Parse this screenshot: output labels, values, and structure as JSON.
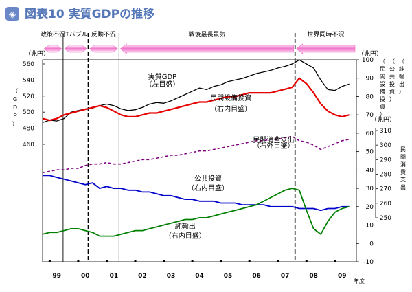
{
  "figure": {
    "title": "図表10 実質GDPの推移",
    "badge_glyph": "◈"
  },
  "phases": [
    {
      "label": "政策不況",
      "start": 1999.0,
      "end": 1999.72,
      "arrow": "both"
    },
    {
      "label": "ITバブル",
      "start": 1999.72,
      "end": 2000.6,
      "arrow": "both"
    },
    {
      "label": "反動不況",
      "start": 2000.6,
      "end": 2001.68,
      "arrow": "both"
    },
    {
      "label": "戦後最長景気",
      "start": 2001.68,
      "end": 2007.85,
      "arrow": "left"
    },
    {
      "label": "世界同時不況",
      "start": 2007.85,
      "end": 2010.0,
      "arrow": "left"
    }
  ],
  "phase_dividers": [
    1999.72,
    2000.6,
    2001.68,
    2007.85
  ],
  "dashed_dividers": [
    2000.6,
    2007.85
  ],
  "x_axis": {
    "start": 1999.0,
    "end": 2010.0,
    "tick_labels": [
      "99",
      "00",
      "01",
      "02",
      "03",
      "04",
      "05",
      "06",
      "07",
      "08",
      "09"
    ],
    "tick_positions": [
      1999.5,
      2000.5,
      2001.5,
      2002.5,
      2003.5,
      2004.5,
      2005.5,
      2006.5,
      2007.5,
      2008.5,
      2009.5
    ],
    "suffix": "年度"
  },
  "axes": {
    "left": {
      "unit": "（兆円）",
      "label_chars": [
        "（",
        "Ｇ",
        "Ｄ",
        "Ｐ",
        "）"
      ],
      "ticks": [
        460,
        480,
        500,
        520,
        540,
        560
      ],
      "range": [
        360,
        560
      ]
    },
    "right_inner": {
      "unit": "（兆円）",
      "title_cols": [
        [
          "（",
          "民",
          "間",
          "設",
          "備",
          "投",
          "資",
          "）"
        ],
        [
          "（",
          "公",
          "共",
          "投",
          "資",
          "）"
        ],
        [
          "（",
          "純",
          "輸",
          "出",
          "）"
        ]
      ],
      "ticks": [
        -10,
        0,
        10,
        20,
        30,
        40,
        50,
        60,
        70,
        80,
        90,
        100
      ],
      "range": [
        -10,
        100
      ]
    },
    "right_outer": {
      "unit": "（兆円）",
      "title_chars": [
        "民",
        "間",
        "消",
        "費",
        "支",
        "出"
      ],
      "ticks": [
        250,
        260,
        270,
        280,
        290,
        300,
        310
      ],
      "range": [
        250,
        310
      ]
    }
  },
  "chart_data": {
    "type": "line",
    "x": [
      1999.0,
      1999.25,
      1999.5,
      1999.75,
      2000.0,
      2000.25,
      2000.5,
      2000.75,
      2001.0,
      2001.25,
      2001.5,
      2001.75,
      2002.0,
      2002.25,
      2002.5,
      2002.75,
      2003.0,
      2003.25,
      2003.5,
      2003.75,
      2004.0,
      2004.25,
      2004.5,
      2004.75,
      2005.0,
      2005.25,
      2005.5,
      2005.75,
      2006.0,
      2006.25,
      2006.5,
      2006.75,
      2007.0,
      2007.25,
      2007.5,
      2007.75,
      2008.0,
      2008.25,
      2008.5,
      2008.75,
      2009.0,
      2009.25,
      2009.5,
      2009.75
    ],
    "series": [
      {
        "name": "実質GDP",
        "sublabel": "（左目盛）",
        "axis": "left",
        "color": "#000000",
        "dash": "",
        "width": 1.3,
        "values": [
          487,
          490,
          489,
          492,
          500,
          502,
          504,
          505,
          508,
          510,
          508,
          504,
          502,
          503,
          506,
          510,
          512,
          511,
          514,
          518,
          522,
          526,
          530,
          528,
          532,
          534,
          538,
          540,
          542,
          545,
          548,
          550,
          552,
          555,
          557,
          560,
          565,
          560,
          555,
          540,
          528,
          527,
          532,
          535
        ],
        "label_pos": {
          "x": 2003.2,
          "y": 541
        },
        "sub_pos": {
          "x": 2003.2,
          "y": 532
        }
      },
      {
        "name": "民間設備投資",
        "sublabel": "（右内目盛）",
        "axis": "right_inner",
        "color": "#e60000",
        "dash": "",
        "width": 2.2,
        "values": [
          68,
          67,
          68,
          70,
          71,
          72,
          73,
          74,
          75,
          74,
          72,
          70,
          69,
          69,
          70,
          71,
          71,
          72,
          73,
          74,
          75,
          76,
          77,
          77,
          78,
          79,
          80,
          80,
          81,
          82,
          82,
          82,
          82,
          83,
          84,
          85,
          90,
          87,
          82,
          76,
          72,
          70,
          69,
          70
        ],
        "label_pos": {
          "x": 2005.6,
          "y": 78
        },
        "sub_pos": {
          "x": 2005.6,
          "y": 72
        }
      },
      {
        "name": "民間消費支出",
        "sublabel": "（右外目盛）",
        "axis": "right_outer",
        "color": "#800080",
        "dash": "4,3",
        "width": 1.6,
        "values": [
          281,
          282,
          283,
          283,
          284,
          284,
          286,
          287,
          287,
          288,
          287,
          287,
          288,
          289,
          290,
          290,
          291,
          292,
          293,
          293,
          294,
          295,
          296,
          296,
          297,
          298,
          299,
          300,
          301,
          302,
          303,
          303,
          304,
          304,
          305,
          306,
          303,
          302,
          300,
          297,
          299,
          301,
          303,
          304
        ],
        "label_pos": {
          "x": 2007.1,
          "y": 302
        },
        "sub_pos": {
          "x": 2007.1,
          "y": 298
        }
      },
      {
        "name": "公共投資",
        "sublabel": "（右内目盛）",
        "axis": "right_inner",
        "color": "#0000cc",
        "dash": "",
        "width": 1.8,
        "values": [
          37,
          37,
          36,
          35,
          34,
          33,
          32,
          33,
          30,
          31,
          30,
          30,
          29,
          29,
          28,
          28,
          27,
          26,
          26,
          25,
          24,
          24,
          23,
          23,
          23,
          22,
          22,
          22,
          21,
          21,
          21,
          21,
          20,
          20,
          20,
          20,
          19,
          19,
          19,
          18,
          19,
          19,
          20,
          20
        ],
        "label_pos": {
          "x": 2004.8,
          "y": 34
        },
        "sub_pos": {
          "x": 2004.8,
          "y": 29
        }
      },
      {
        "name": "純輸出",
        "sublabel": "（右内目盛）",
        "axis": "right_inner",
        "color": "#008000",
        "dash": "",
        "width": 1.8,
        "values": [
          5,
          6,
          6,
          7,
          8,
          8,
          7,
          6,
          4,
          4,
          4,
          5,
          6,
          7,
          7,
          8,
          9,
          10,
          11,
          12,
          13,
          13,
          14,
          14,
          15,
          16,
          17,
          18,
          19,
          20,
          21,
          23,
          25,
          27,
          29,
          30,
          29,
          18,
          8,
          5,
          12,
          17,
          19,
          20
        ],
        "label_pos": {
          "x": 2004.0,
          "y": 8
        },
        "sub_pos": {
          "x": 2004.0,
          "y": 3
        }
      }
    ]
  }
}
